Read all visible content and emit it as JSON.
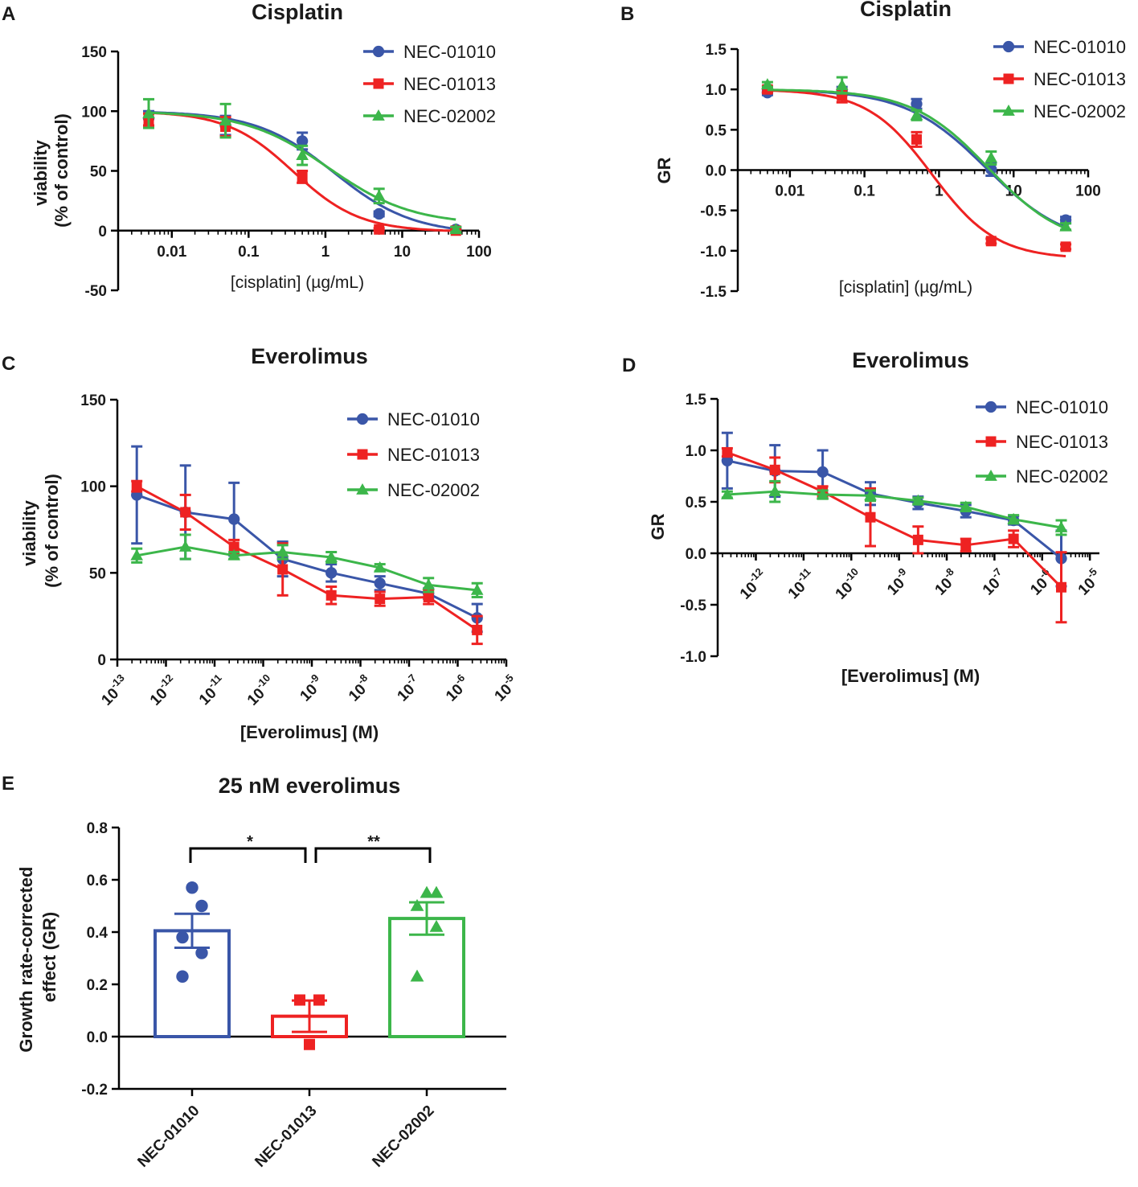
{
  "colors": {
    "NEC-01010": "#3a56a8",
    "NEC-01013": "#ee2222",
    "NEC-02002": "#3cb64a"
  },
  "panels": {
    "A": {
      "letter": "A",
      "title": "Cisplatin",
      "xlabel": "[cisplatin] (µg/mL)",
      "ylabel_line1": "viability",
      "ylabel_line2": "(% of control)"
    },
    "B": {
      "letter": "B",
      "title": "Cisplatin",
      "xlabel": "[cisplatin] (µg/mL)",
      "ylabel": "GR"
    },
    "C": {
      "letter": "C",
      "title": "Everolimus",
      "xlabel": "[Everolimus] (M)",
      "ylabel_line1": "viability",
      "ylabel_line2": "(% of control)"
    },
    "D": {
      "letter": "D",
      "title": "Everolimus",
      "xlabel": "[Everolimus] (M)",
      "ylabel": "GR"
    },
    "E": {
      "letter": "E",
      "title": "25 nM everolimus",
      "ylabel_line1": "Growth rate-corrected",
      "ylabel_line2": "effect (GR)",
      "sig_left": "*",
      "sig_right": "**"
    }
  },
  "chart_data": [
    {
      "id": "A",
      "type": "scatter",
      "fit": "sigmoid",
      "title": "Cisplatin",
      "xlabel": "[cisplatin] (µg/mL)",
      "ylabel": "viability (% of control)",
      "xscale": "log10",
      "xlim": [
        0.002,
        100
      ],
      "ylim": [
        -50,
        150
      ],
      "xticks": [
        "0.01",
        "0.1",
        "1",
        "10",
        "100"
      ],
      "yticks": [
        "-50",
        "0",
        "50",
        "100",
        "150"
      ],
      "x": [
        0.005,
        0.05,
        0.5,
        5,
        50
      ],
      "series": [
        {
          "name": "NEC-01010",
          "marker": "circle",
          "values": [
            94,
            88,
            75,
            14,
            1
          ],
          "errors": [
            6,
            8,
            7,
            2,
            2
          ],
          "fit": {
            "top": 100,
            "bottom": -3,
            "ec50": 1.3,
            "hill": 0.85
          }
        },
        {
          "name": "NEC-01013",
          "marker": "square",
          "values": [
            93,
            87,
            45,
            1,
            0
          ],
          "errors": [
            5,
            8,
            5,
            1,
            1
          ],
          "fit": {
            "top": 100,
            "bottom": -1,
            "ec50": 0.38,
            "hill": 1.0
          }
        },
        {
          "name": "NEC-02002",
          "marker": "triangle",
          "values": [
            98,
            92,
            63,
            29,
            1
          ],
          "errors": [
            12,
            14,
            8,
            6,
            2
          ],
          "fit": {
            "top": 100,
            "bottom": 5,
            "ec50": 1.1,
            "hill": 0.8
          }
        }
      ],
      "legend": "top-right"
    },
    {
      "id": "B",
      "type": "scatter",
      "fit": "sigmoid",
      "title": "Cisplatin",
      "xlabel": "[cisplatin] (µg/mL)",
      "ylabel": "GR",
      "xscale": "log10",
      "xlim": [
        0.002,
        100
      ],
      "ylim": [
        -1.5,
        1.5
      ],
      "xticks": [
        "0.01",
        "0.1",
        "1",
        "10",
        "100"
      ],
      "yticks": [
        "-1.5",
        "-1.0",
        "-0.5",
        "0.0",
        "0.5",
        "1.0",
        "1.5"
      ],
      "x": [
        0.005,
        0.05,
        0.5,
        5,
        50
      ],
      "series": [
        {
          "name": "NEC-01010",
          "marker": "circle",
          "values": [
            0.96,
            0.98,
            0.82,
            0.01,
            -0.62
          ],
          "errors": [
            0.03,
            0.05,
            0.06,
            0.08,
            0.04
          ],
          "fit": {
            "top": 1.0,
            "bottom": -0.95,
            "ec50": 4.3,
            "hill": 0.8
          }
        },
        {
          "name": "NEC-01013",
          "marker": "square",
          "values": [
            1.0,
            0.92,
            0.38,
            -0.88,
            -0.95
          ],
          "errors": [
            0.04,
            0.08,
            0.09,
            0.03,
            0.03
          ],
          "fit": {
            "top": 1.0,
            "bottom": -1.1,
            "ec50": 0.8,
            "hill": 1.0
          }
        },
        {
          "name": "NEC-02002",
          "marker": "triangle",
          "values": [
            1.06,
            1.05,
            0.68,
            0.15,
            -0.7
          ],
          "errors": [
            0.03,
            0.1,
            0.06,
            0.08,
            0.04
          ],
          "fit": {
            "top": 1.0,
            "bottom": -0.95,
            "ec50": 4.6,
            "hill": 0.85
          }
        }
      ],
      "legend": "top-right"
    },
    {
      "id": "C",
      "type": "line",
      "title": "Everolimus",
      "xlabel": "[Everolimus] (M)",
      "ylabel": "viability (% of control)",
      "xscale": "log10",
      "xlim_exp": [
        -13,
        -5
      ],
      "ylim": [
        0,
        150
      ],
      "xticks": [
        "10-13",
        "10-12",
        "10-11",
        "10-10",
        "10-9",
        "10-8",
        "10-7",
        "10-6",
        "10-5"
      ],
      "yticks": [
        "0",
        "50",
        "100",
        "150"
      ],
      "x_exp": [
        -12.6,
        -11.6,
        -10.6,
        -9.6,
        -8.6,
        -7.6,
        -6.6,
        -5.6
      ],
      "series": [
        {
          "name": "NEC-01010",
          "marker": "circle",
          "values": [
            95,
            85,
            81,
            58,
            50,
            44,
            38,
            24
          ],
          "errors": [
            28,
            27,
            21,
            10,
            5,
            4,
            3,
            8
          ]
        },
        {
          "name": "NEC-01013",
          "marker": "square",
          "values": [
            100,
            85,
            65,
            52,
            37,
            35,
            36,
            17
          ],
          "errors": [
            3,
            10,
            4,
            15,
            5,
            4,
            4,
            8
          ]
        },
        {
          "name": "NEC-02002",
          "marker": "triangle",
          "values": [
            60,
            65,
            60,
            62,
            59,
            53,
            43,
            40
          ],
          "errors": [
            4,
            7,
            2,
            4,
            3,
            2,
            4,
            4
          ]
        }
      ],
      "legend": "top-right"
    },
    {
      "id": "D",
      "type": "line",
      "title": "Everolimus",
      "xlabel": "[Everolimus] (M)",
      "ylabel": "GR",
      "xscale": "log10",
      "xlim_exp": [
        -12.8,
        -4.8
      ],
      "ylim": [
        -1.0,
        1.5
      ],
      "xticks": [
        "10-12",
        "10-11",
        "10-10",
        "10-9",
        "10-8",
        "10-7",
        "10-6",
        "10-5"
      ],
      "yticks": [
        "-1.0",
        "-0.5",
        "0.0",
        "0.5",
        "1.0",
        "1.5"
      ],
      "x_exp": [
        -12.6,
        -11.6,
        -10.6,
        -9.6,
        -8.6,
        -7.6,
        -6.6,
        -5.6
      ],
      "series": [
        {
          "name": "NEC-01010",
          "marker": "circle",
          "values": [
            0.9,
            0.8,
            0.79,
            0.58,
            0.49,
            0.41,
            0.32,
            -0.05
          ],
          "errors": [
            0.27,
            0.25,
            0.21,
            0.11,
            0.06,
            0.06,
            0.04,
            0.27
          ]
        },
        {
          "name": "NEC-01013",
          "marker": "square",
          "values": [
            0.98,
            0.81,
            0.6,
            0.35,
            0.13,
            0.08,
            0.14,
            -0.33
          ],
          "errors": [
            0.04,
            0.12,
            0.05,
            0.28,
            0.13,
            0.06,
            0.08,
            0.34
          ]
        },
        {
          "name": "NEC-02002",
          "marker": "triangle",
          "values": [
            0.57,
            0.6,
            0.57,
            0.56,
            0.51,
            0.45,
            0.33,
            0.25
          ],
          "errors": [
            0.03,
            0.1,
            0.04,
            0.05,
            0.03,
            0.04,
            0.04,
            0.07
          ]
        }
      ],
      "legend": "top-right"
    },
    {
      "id": "E",
      "type": "bar",
      "title": "25 nM everolimus",
      "xlabel": "",
      "ylabel": "Growth rate-corrected effect (GR)",
      "ylim": [
        -0.2,
        0.8
      ],
      "yticks": [
        "-0.2",
        "0.0",
        "0.2",
        "0.4",
        "0.6",
        "0.8"
      ],
      "categories": [
        "NEC-01010",
        "NEC-01013",
        "NEC-02002"
      ],
      "values": [
        0.405,
        0.078,
        0.452
      ],
      "errors": [
        0.065,
        0.06,
        0.062
      ],
      "markers": [
        "circle",
        "square",
        "triangle"
      ],
      "points": [
        [
          0.57,
          0.5,
          0.38,
          0.32,
          0.23
        ],
        [
          0.14,
          0.14,
          -0.03
        ],
        [
          0.55,
          0.55,
          0.5,
          0.42,
          0.23
        ]
      ],
      "significance": [
        {
          "between": [
            "NEC-01010",
            "NEC-01013"
          ],
          "label": "*"
        },
        {
          "between": [
            "NEC-01013",
            "NEC-02002"
          ],
          "label": "**"
        }
      ]
    }
  ]
}
